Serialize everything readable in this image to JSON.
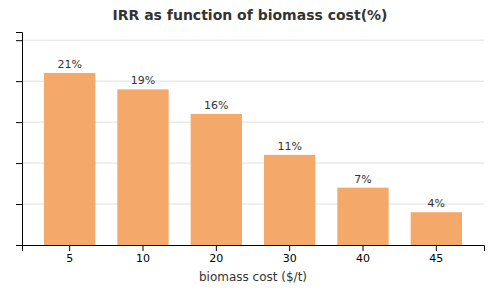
{
  "chart_data": {
    "type": "bar",
    "title": "IRR as function of biomass cost(%)",
    "xlabel": "biomass cost ($/t)",
    "categories": [
      "5",
      "10",
      "20",
      "30",
      "40",
      "45"
    ],
    "values": [
      21,
      19,
      16,
      11,
      7,
      4
    ],
    "value_labels": [
      "21%",
      "19%",
      "16%",
      "11%",
      "7%",
      "4%"
    ],
    "data_labels": true,
    "color": "#F4A96A",
    "ylim": [
      0,
      26
    ],
    "yticks": [
      5,
      10,
      15,
      20,
      25
    ],
    "grid": true,
    "tick_labels": "x"
  }
}
